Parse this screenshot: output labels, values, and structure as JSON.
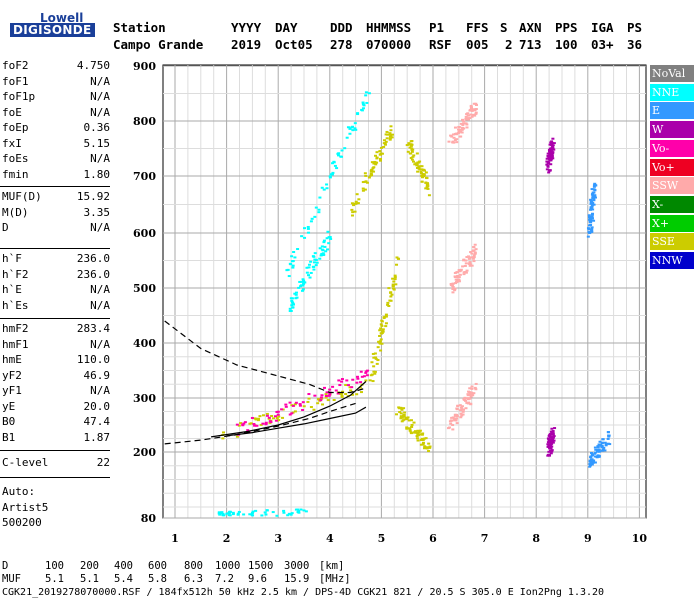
{
  "logo": {
    "line1": "Lowell",
    "line2": "DIGISONDE"
  },
  "header": {
    "row1": [
      "Station",
      "YYYY",
      "DAY",
      "DDD",
      "HHMMSS",
      "P1",
      "FFS",
      "S",
      "AXN",
      "PPS",
      "IGA",
      "PS"
    ],
    "row2": [
      "Campo Grande",
      "2019",
      "Oct05",
      "278",
      "070000",
      "RSF",
      "005",
      "2",
      "713",
      "100",
      "03+",
      "36"
    ]
  },
  "params_group1": [
    {
      "name": "foF2",
      "value": "4.750"
    },
    {
      "name": "foF1",
      "value": "N/A"
    },
    {
      "name": "foF1p",
      "value": "N/A"
    },
    {
      "name": "foE",
      "value": "N/A"
    },
    {
      "name": "foEp",
      "value": "0.36"
    },
    {
      "name": "fxI",
      "value": "5.15"
    },
    {
      "name": "foEs",
      "value": "N/A"
    },
    {
      "name": "fmin",
      "value": "1.80"
    }
  ],
  "params_group2": [
    {
      "name": "MUF(D)",
      "value": "15.92"
    },
    {
      "name": "M(D)",
      "value": "3.35"
    },
    {
      "name": "D",
      "value": "N/A"
    }
  ],
  "params_group3": [
    {
      "name": "h`F",
      "value": "236.0"
    },
    {
      "name": "h`F2",
      "value": "236.0"
    },
    {
      "name": "h`E",
      "value": "N/A"
    },
    {
      "name": "h`Es",
      "value": "N/A"
    }
  ],
  "params_group4": [
    {
      "name": "hmF2",
      "value": "283.4"
    },
    {
      "name": "hmF1",
      "value": "N/A"
    },
    {
      "name": "hmE",
      "value": "110.0"
    },
    {
      "name": "yF2",
      "value": "46.9"
    },
    {
      "name": "yF1",
      "value": "N/A"
    },
    {
      "name": "yE",
      "value": "20.0"
    },
    {
      "name": "B0",
      "value": "47.4"
    },
    {
      "name": "B1",
      "value": "1.87"
    }
  ],
  "params_group5": [
    {
      "name": "C-level",
      "value": "22"
    }
  ],
  "auto": {
    "line1": "Auto:",
    "line2": "Artist5",
    "line3": "500200"
  },
  "legend": [
    {
      "label": "NoVal",
      "color": "#808080"
    },
    {
      "label": "NNE",
      "color": "#00ffff"
    },
    {
      "label": "E",
      "color": "#3399ff"
    },
    {
      "label": "W",
      "color": "#aa00aa"
    },
    {
      "label": "Vo-",
      "color": "#ff00aa"
    },
    {
      "label": "Vo+",
      "color": "#ee0022"
    },
    {
      "label": "SSW",
      "color": "#ffaaaa"
    },
    {
      "label": "X-",
      "color": "#008800"
    },
    {
      "label": "X+",
      "color": "#00cc00"
    },
    {
      "label": "SSE",
      "color": "#cccc00"
    },
    {
      "label": "NNW",
      "color": "#0000cc"
    }
  ],
  "footer": {
    "d_label": "D",
    "d_values": [
      "100",
      "200",
      "400",
      "600",
      "800",
      "1000",
      "1500",
      "3000",
      "[km]"
    ],
    "muf_label": "MUF",
    "muf_values": [
      "5.1",
      "5.1",
      "5.4",
      "5.8",
      "6.3",
      "7.2",
      "9.6",
      "15.9",
      "[MHz]"
    ],
    "file_line": "CGK21_2019278070000.RSF / 184fx512h 50 kHz 2.5 km / DPS-4D CGK21 821 / 20.5 S 305.0 E Ion2Png 1.3.20"
  },
  "chart_data": {
    "type": "scatter",
    "xlim": [
      0.8,
      10
    ],
    "x_ticks": [
      1,
      2,
      3,
      4,
      5,
      6,
      7,
      8,
      9,
      10
    ],
    "y_ticks": [
      80,
      200,
      300,
      400,
      500,
      600,
      700,
      800,
      900
    ],
    "y_scale": "log",
    "ylim": [
      80,
      900
    ],
    "grid": true,
    "legend_position": "right",
    "profile_lines": [
      {
        "style": "dashed",
        "points": [
          [
            0.8,
            440
          ],
          [
            1.5,
            390
          ],
          [
            2.2,
            360
          ],
          [
            3,
            340
          ],
          [
            3.6,
            325
          ],
          [
            4.0,
            310
          ],
          [
            4.4,
            310
          ],
          [
            4.7,
            318
          ]
        ]
      },
      {
        "style": "dashed",
        "points": [
          [
            0.8,
            215
          ],
          [
            1.5,
            222
          ],
          [
            2.2,
            232
          ],
          [
            3,
            248
          ],
          [
            3.6,
            262
          ],
          [
            4.0,
            275
          ],
          [
            4.5,
            290
          ]
        ]
      },
      {
        "style": "solid",
        "points": [
          [
            2.0,
            230
          ],
          [
            2.5,
            236
          ],
          [
            3.0,
            244
          ],
          [
            3.5,
            252
          ],
          [
            4.0,
            262
          ],
          [
            4.5,
            272
          ],
          [
            4.7,
            283
          ]
        ]
      },
      {
        "style": "solid",
        "points": [
          [
            1.7,
            228
          ],
          [
            2.4,
            238
          ],
          [
            3.0,
            250
          ],
          [
            3.5,
            265
          ],
          [
            4.0,
            285
          ],
          [
            4.4,
            305
          ],
          [
            4.7,
            330
          ]
        ]
      }
    ],
    "traces": [
      {
        "source": "SSE",
        "x0": 1.9,
        "y0": 232,
        "x1": 4.75,
        "y1": 330
      },
      {
        "source": "Vo-",
        "x0": 2.2,
        "y0": 240,
        "x1": 4.7,
        "y1": 345
      },
      {
        "source": "NNE",
        "x0": 2.0,
        "y0": 82,
        "x1": 3.5,
        "y1": 86
      },
      {
        "source": "NNE",
        "x0": 1.8,
        "y0": 80,
        "x1": 2.1,
        "y1": 82
      },
      {
        "source": "NNE",
        "x0": 3.1,
        "y0": 520,
        "x1": 4.75,
        "y1": 860
      },
      {
        "source": "NNE",
        "x0": 3.2,
        "y0": 470,
        "x1": 4.0,
        "y1": 600
      },
      {
        "source": "SSE",
        "x0": 4.75,
        "y0": 330,
        "x1": 5.3,
        "y1": 550
      },
      {
        "source": "SSE",
        "x0": 5.3,
        "y0": 280,
        "x1": 5.9,
        "y1": 210
      },
      {
        "source": "SSE",
        "x0": 4.4,
        "y0": 640,
        "x1": 5.2,
        "y1": 790
      },
      {
        "source": "SSE",
        "x0": 5.5,
        "y0": 760,
        "x1": 5.9,
        "y1": 680
      },
      {
        "source": "SSW",
        "x0": 6.3,
        "y0": 250,
        "x1": 6.8,
        "y1": 320
      },
      {
        "source": "SSW",
        "x0": 6.3,
        "y0": 500,
        "x1": 6.8,
        "y1": 570
      },
      {
        "source": "SSW",
        "x0": 6.3,
        "y0": 760,
        "x1": 6.8,
        "y1": 830
      },
      {
        "source": "W",
        "x0": 8.2,
        "y0": 200,
        "x1": 8.3,
        "y1": 240
      },
      {
        "source": "W",
        "x0": 8.2,
        "y0": 720,
        "x1": 8.3,
        "y1": 760
      },
      {
        "source": "E",
        "x0": 9.0,
        "y0": 180,
        "x1": 9.4,
        "y1": 230
      },
      {
        "source": "E",
        "x0": 9.0,
        "y0": 600,
        "x1": 9.1,
        "y1": 680
      }
    ]
  }
}
